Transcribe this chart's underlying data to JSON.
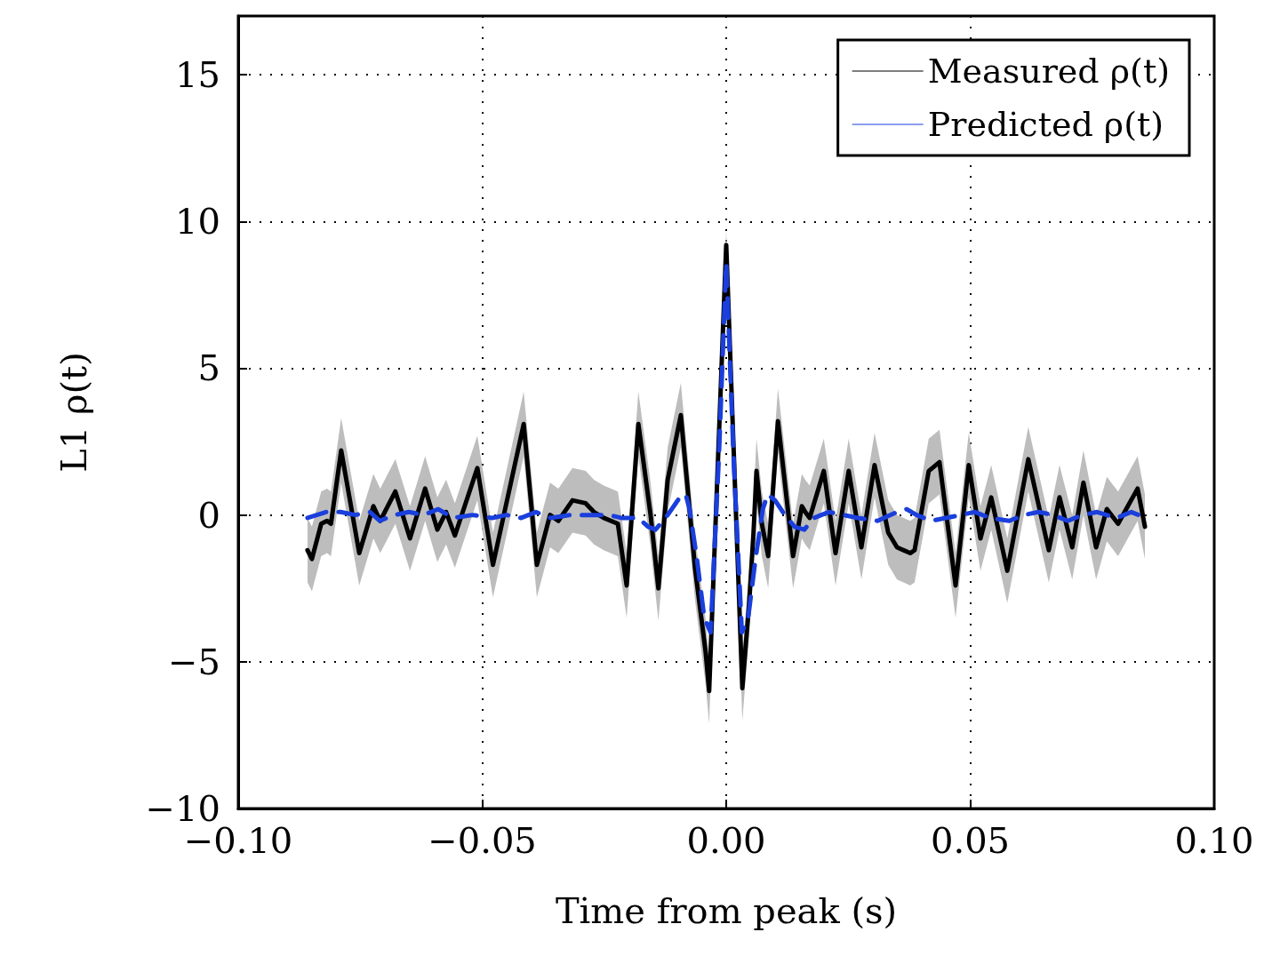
{
  "chart_data": {
    "type": "line",
    "xlabel": "Time from peak (s)",
    "ylabel": "L1 ρ(t)",
    "xlim": [
      -0.1,
      0.1
    ],
    "xticks": [
      {
        "value": -0.1,
        "label": "−0.10"
      },
      {
        "value": -0.05,
        "label": "−0.05"
      },
      {
        "value": 0,
        "label": "0.00"
      },
      {
        "value": 0.05,
        "label": "0.05"
      },
      {
        "value": 0.1,
        "label": "0.10"
      }
    ],
    "ylim": [
      -10,
      17
    ],
    "yticks": [
      {
        "value": -10,
        "label": "−10"
      },
      {
        "value": -5,
        "label": "−5"
      },
      0,
      5,
      10,
      15
    ],
    "grid": true,
    "legend": "top right",
    "marker": "none",
    "series": [
      {
        "name": "Measured ρ(t)",
        "color": "#000000",
        "line_style": "solid",
        "x": [
          -0.0858,
          -0.0849,
          -0.083,
          -0.0818,
          -0.081,
          -0.0789,
          -0.0752,
          -0.0723,
          -0.0709,
          -0.0678,
          -0.0648,
          -0.0617,
          -0.0592,
          -0.0574,
          -0.0556,
          -0.051,
          -0.0478,
          -0.0415,
          -0.0388,
          -0.0361,
          -0.0344,
          -0.0315,
          -0.0288,
          -0.0271,
          -0.0251,
          -0.0222,
          -0.0204,
          -0.018,
          -0.0155,
          -0.0139,
          -0.012,
          -0.0093,
          -0.0064,
          -0.0042,
          -0.0035,
          0,
          0.0033,
          0.0047,
          0.0056,
          0.0062,
          0.0073,
          0.0086,
          0.0106,
          0.0137,
          0.0155,
          0.0162,
          0.0171,
          0.02,
          0.0224,
          0.0251,
          0.0277,
          0.0304,
          0.0332,
          0.035,
          0.0377,
          0.0386,
          0.0415,
          0.0437,
          0.047,
          0.0497,
          0.0521,
          0.0543,
          0.0576,
          0.0619,
          0.0661,
          0.0683,
          0.0709,
          0.0732,
          0.0758,
          0.078,
          0.0803,
          0.0843,
          0.0858
        ],
        "values": [
          -1.2,
          -1.5,
          -0.3,
          -0.2,
          -0.3,
          2.2,
          -1.3,
          0.3,
          -0.2,
          0.8,
          -0.8,
          0.9,
          -0.5,
          0.1,
          -0.7,
          1.6,
          -1.7,
          3.1,
          -1.7,
          0,
          -0.2,
          0.5,
          0.4,
          0.1,
          -0.1,
          -0.3,
          -2.4,
          3.1,
          0,
          -2.5,
          1.2,
          3.4,
          -1.8,
          -4.7,
          -6,
          9.2,
          -5.9,
          -3,
          -0.6,
          1.5,
          -0.3,
          -1.4,
          3.2,
          -1.4,
          0.3,
          0.1,
          -0.1,
          1.5,
          -1.3,
          1.5,
          -1.1,
          1.7,
          -0.6,
          -1.1,
          -1.3,
          -1.2,
          1.5,
          1.8,
          -2.4,
          1.7,
          -0.8,
          0.6,
          -1.9,
          1.9,
          -1.2,
          0.6,
          -1.1,
          1.1,
          -1.1,
          0.2,
          -0.3,
          0.9,
          -0.4
        ],
        "upper": [
          -0.1,
          -0.4,
          0.8,
          0.9,
          0.8,
          3.3,
          -0.2,
          1.4,
          0.9,
          1.9,
          0.3,
          2,
          0.6,
          1.2,
          0.4,
          2.7,
          -0.6,
          4.2,
          -0.6,
          1.1,
          0.9,
          1.6,
          1.5,
          1.2,
          1,
          0.8,
          -1.3,
          4.2,
          1.1,
          -1.4,
          2.3,
          4.5,
          -0.7,
          -3.6,
          -4.9,
          9.7,
          -4.8,
          -1.9,
          0.5,
          2.6,
          0.8,
          -0.3,
          4.3,
          -0.3,
          1.4,
          1.2,
          1,
          2.6,
          -0.2,
          2.6,
          0,
          2.8,
          0.5,
          0,
          -0.2,
          -0.1,
          2.6,
          2.9,
          -1.3,
          2.8,
          0.3,
          1.7,
          -0.8,
          3,
          -0.1,
          1.7,
          0,
          2.2,
          0,
          1.3,
          0.8,
          2,
          0.7
        ],
        "lower": [
          -2.3,
          -2.6,
          -1.4,
          -1.3,
          -1.4,
          1.1,
          -2.4,
          -0.8,
          -1.3,
          -0.3,
          -1.9,
          -0.2,
          -1.6,
          -1,
          -1.8,
          0.5,
          -2.8,
          2,
          -2.8,
          -1.1,
          -1.3,
          -0.6,
          -0.7,
          -1,
          -1.2,
          -1.4,
          -3.5,
          2,
          -1.1,
          -3.6,
          0.1,
          2.3,
          -2.9,
          -5.8,
          -7.1,
          8.7,
          -7,
          -4.1,
          -1.7,
          0.4,
          -1.4,
          -2.5,
          2.1,
          -2.5,
          -0.8,
          -1,
          -1.2,
          0.4,
          -2.4,
          0.4,
          -2.2,
          0.6,
          -1.7,
          -2.2,
          -2.4,
          -2.3,
          0.4,
          0.7,
          -3.5,
          0.6,
          -1.9,
          -0.5,
          -3,
          0.8,
          -2.3,
          -0.5,
          -2.2,
          0,
          -2.2,
          -0.9,
          -1.4,
          -0.2,
          -1.5
        ]
      },
      {
        "name": "Predicted ρ(t)",
        "color": "#1a3fdc",
        "line_style": "dashed",
        "x": [
          -0.0858,
          -0.082,
          -0.079,
          -0.076,
          -0.073,
          -0.071,
          -0.068,
          -0.065,
          -0.062,
          -0.059,
          -0.056,
          -0.052,
          -0.048,
          -0.045,
          -0.042,
          -0.039,
          -0.036,
          -0.032,
          -0.028,
          -0.024,
          -0.0215,
          -0.018,
          -0.016,
          -0.0145,
          -0.012,
          -0.0095,
          -0.0083,
          -0.0075,
          -0.006,
          -0.0045,
          -0.0032,
          -0.0015,
          0,
          0.0015,
          0.0032,
          0.0045,
          0.006,
          0.0075,
          0.0085,
          0.01,
          0.012,
          0.014,
          0.016,
          0.018,
          0.021,
          0.024,
          0.027,
          0.031,
          0.035,
          0.037,
          0.039,
          0.042,
          0.045,
          0.048,
          0.051,
          0.054,
          0.058,
          0.061,
          0.064,
          0.067,
          0.07,
          0.073,
          0.076,
          0.08,
          0.083,
          0.086
        ],
        "values": [
          -0.1,
          0.1,
          0.1,
          0,
          0.1,
          -0.2,
          0,
          0.1,
          0,
          0.2,
          -0.1,
          0,
          -0.1,
          0,
          -0.1,
          0.1,
          -0.1,
          0,
          0,
          0,
          -0.1,
          -0.1,
          -0.4,
          -0.5,
          0,
          0.6,
          0.7,
          0.2,
          -1.5,
          -3.5,
          -4,
          2,
          8.6,
          2,
          -4,
          -3.5,
          -1.5,
          0.2,
          0.7,
          0.5,
          0,
          -0.4,
          -0.5,
          -0.1,
          0.1,
          0,
          -0.1,
          -0.2,
          0.1,
          0.2,
          0,
          -0.2,
          -0.1,
          0,
          0.1,
          -0.1,
          -0.2,
          0,
          0.1,
          0,
          -0.2,
          0,
          0.1,
          -0.1,
          0.1,
          -0.1
        ]
      }
    ]
  }
}
